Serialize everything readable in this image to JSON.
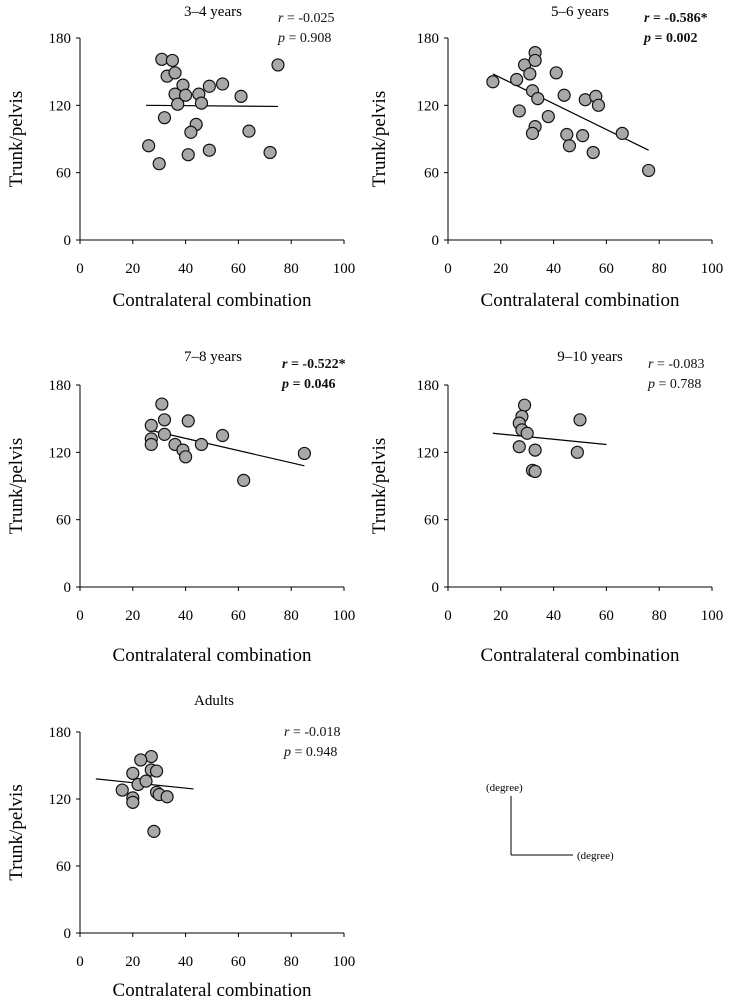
{
  "figure": {
    "unit_y_label": "(degree)",
    "unit_x_label": "(degree)"
  },
  "chart_data": [
    {
      "type": "scatter",
      "title": "3–4 years",
      "xlabel": "Contralateral combination",
      "ylabel": "Trunk/pelvis",
      "xlim": [
        0,
        100
      ],
      "ylim": [
        0,
        180
      ],
      "xticks": [
        0,
        20,
        40,
        60,
        80,
        100
      ],
      "yticks": [
        0,
        60,
        120,
        180
      ],
      "x_tick_labels": [
        "0",
        "20",
        "40",
        "60",
        "80",
        "100"
      ],
      "y_tick_labels": [
        "0",
        "60",
        "120",
        "180"
      ],
      "r_text": "-0.025",
      "p_text": "0.908",
      "significant": false,
      "r_label": "r",
      "p_label": "p",
      "eq": " = ",
      "points": [
        {
          "x": 31,
          "y": 161
        },
        {
          "x": 35,
          "y": 160
        },
        {
          "x": 33,
          "y": 146
        },
        {
          "x": 36,
          "y": 149
        },
        {
          "x": 36,
          "y": 130
        },
        {
          "x": 37,
          "y": 121
        },
        {
          "x": 39,
          "y": 138
        },
        {
          "x": 40,
          "y": 129
        },
        {
          "x": 45,
          "y": 130
        },
        {
          "x": 46,
          "y": 122
        },
        {
          "x": 49,
          "y": 137
        },
        {
          "x": 54,
          "y": 139
        },
        {
          "x": 61,
          "y": 128
        },
        {
          "x": 75,
          "y": 156
        },
        {
          "x": 32,
          "y": 109
        },
        {
          "x": 44,
          "y": 103
        },
        {
          "x": 42,
          "y": 96
        },
        {
          "x": 64,
          "y": 97
        },
        {
          "x": 26,
          "y": 84
        },
        {
          "x": 41,
          "y": 76
        },
        {
          "x": 49,
          "y": 80
        },
        {
          "x": 30,
          "y": 68
        },
        {
          "x": 72,
          "y": 78
        }
      ],
      "trend": {
        "x": [
          25,
          75
        ],
        "y": [
          120,
          119
        ]
      }
    },
    {
      "type": "scatter",
      "title": "5–6 years",
      "xlabel": "Contralateral combination",
      "ylabel": "Trunk/pelvis",
      "xlim": [
        0,
        100
      ],
      "ylim": [
        0,
        180
      ],
      "xticks": [
        0,
        20,
        40,
        60,
        80,
        100
      ],
      "yticks": [
        0,
        60,
        120,
        180
      ],
      "x_tick_labels": [
        "0",
        "20",
        "40",
        "60",
        "80",
        "100"
      ],
      "y_tick_labels": [
        "0",
        "60",
        "120",
        "180"
      ],
      "r_text": "-0.586*",
      "p_text": "0.002",
      "significant": true,
      "r_label": "r",
      "p_label": "p",
      "eq": " = ",
      "points": [
        {
          "x": 17,
          "y": 141
        },
        {
          "x": 26,
          "y": 143
        },
        {
          "x": 29,
          "y": 156
        },
        {
          "x": 33,
          "y": 167
        },
        {
          "x": 33,
          "y": 160
        },
        {
          "x": 31,
          "y": 148
        },
        {
          "x": 32,
          "y": 133
        },
        {
          "x": 34,
          "y": 126
        },
        {
          "x": 27,
          "y": 115
        },
        {
          "x": 33,
          "y": 101
        },
        {
          "x": 32,
          "y": 95
        },
        {
          "x": 38,
          "y": 110
        },
        {
          "x": 41,
          "y": 149
        },
        {
          "x": 44,
          "y": 129
        },
        {
          "x": 45,
          "y": 94
        },
        {
          "x": 46,
          "y": 84
        },
        {
          "x": 51,
          "y": 93
        },
        {
          "x": 52,
          "y": 125
        },
        {
          "x": 56,
          "y": 128
        },
        {
          "x": 57,
          "y": 120
        },
        {
          "x": 55,
          "y": 78
        },
        {
          "x": 66,
          "y": 95
        },
        {
          "x": 76,
          "y": 62
        }
      ],
      "trend": {
        "x": [
          17,
          76
        ],
        "y": [
          148,
          80
        ]
      }
    },
    {
      "type": "scatter",
      "title": "7–8 years",
      "xlabel": "Contralateral combination",
      "ylabel": "Trunk/pelvis",
      "xlim": [
        0,
        100
      ],
      "ylim": [
        0,
        180
      ],
      "xticks": [
        0,
        20,
        40,
        60,
        80,
        100
      ],
      "yticks": [
        0,
        60,
        120,
        180
      ],
      "x_tick_labels": [
        "0",
        "20",
        "40",
        "60",
        "80",
        "100"
      ],
      "y_tick_labels": [
        "0",
        "60",
        "120",
        "180"
      ],
      "r_text": "-0.522*",
      "p_text": "0.046",
      "significant": true,
      "r_label": "r",
      "p_label": "p",
      "eq": " = ",
      "points": [
        {
          "x": 27,
          "y": 144
        },
        {
          "x": 27,
          "y": 132
        },
        {
          "x": 27,
          "y": 127
        },
        {
          "x": 31,
          "y": 163
        },
        {
          "x": 32,
          "y": 149
        },
        {
          "x": 32,
          "y": 136
        },
        {
          "x": 36,
          "y": 127
        },
        {
          "x": 39,
          "y": 122
        },
        {
          "x": 40,
          "y": 116
        },
        {
          "x": 41,
          "y": 148
        },
        {
          "x": 46,
          "y": 127
        },
        {
          "x": 54,
          "y": 135
        },
        {
          "x": 62,
          "y": 95
        },
        {
          "x": 85,
          "y": 119
        }
      ],
      "trend": {
        "x": [
          26,
          85
        ],
        "y": [
          140,
          108
        ]
      }
    },
    {
      "type": "scatter",
      "title": "9–10 years",
      "xlabel": "Contralateral combination",
      "ylabel": "Trunk/pelvis",
      "xlim": [
        0,
        100
      ],
      "ylim": [
        0,
        180
      ],
      "xticks": [
        0,
        20,
        40,
        60,
        80,
        100
      ],
      "yticks": [
        0,
        60,
        120,
        180
      ],
      "x_tick_labels": [
        "0",
        "20",
        "40",
        "60",
        "80",
        "100"
      ],
      "y_tick_labels": [
        "0",
        "60",
        "120",
        "180"
      ],
      "r_text": "-0.083",
      "p_text": "0.788",
      "significant": false,
      "r_label": "r",
      "p_label": "p",
      "eq": " = ",
      "points": [
        {
          "x": 29,
          "y": 162
        },
        {
          "x": 28,
          "y": 152
        },
        {
          "x": 27,
          "y": 146
        },
        {
          "x": 28,
          "y": 140
        },
        {
          "x": 30,
          "y": 137
        },
        {
          "x": 27,
          "y": 125
        },
        {
          "x": 33,
          "y": 122
        },
        {
          "x": 32,
          "y": 104
        },
        {
          "x": 33,
          "y": 103
        },
        {
          "x": 50,
          "y": 149
        },
        {
          "x": 49,
          "y": 120
        }
      ],
      "trend": {
        "x": [
          17,
          60
        ],
        "y": [
          137,
          127
        ]
      }
    },
    {
      "type": "scatter",
      "title": "Adults",
      "xlabel": "Contralateral combination",
      "ylabel": "Trunk/pelvis",
      "xlim": [
        0,
        100
      ],
      "ylim": [
        0,
        180
      ],
      "xticks": [
        0,
        20,
        40,
        60,
        80,
        100
      ],
      "yticks": [
        0,
        60,
        120,
        180
      ],
      "x_tick_labels": [
        "0",
        "20",
        "40",
        "60",
        "80",
        "100"
      ],
      "y_tick_labels": [
        "0",
        "60",
        "120",
        "180"
      ],
      "r_text": "-0.018",
      "p_text": "0.948",
      "significant": false,
      "r_label": "r",
      "p_label": "p",
      "eq": " = ",
      "points": [
        {
          "x": 27,
          "y": 158
        },
        {
          "x": 23,
          "y": 155
        },
        {
          "x": 27,
          "y": 146
        },
        {
          "x": 29,
          "y": 145
        },
        {
          "x": 20,
          "y": 143
        },
        {
          "x": 22,
          "y": 133
        },
        {
          "x": 25,
          "y": 136
        },
        {
          "x": 16,
          "y": 128
        },
        {
          "x": 29,
          "y": 126
        },
        {
          "x": 30,
          "y": 124
        },
        {
          "x": 33,
          "y": 122
        },
        {
          "x": 20,
          "y": 121
        },
        {
          "x": 20,
          "y": 117
        },
        {
          "x": 28,
          "y": 91
        }
      ],
      "trend": {
        "x": [
          6,
          43
        ],
        "y": [
          138,
          129
        ]
      }
    }
  ]
}
